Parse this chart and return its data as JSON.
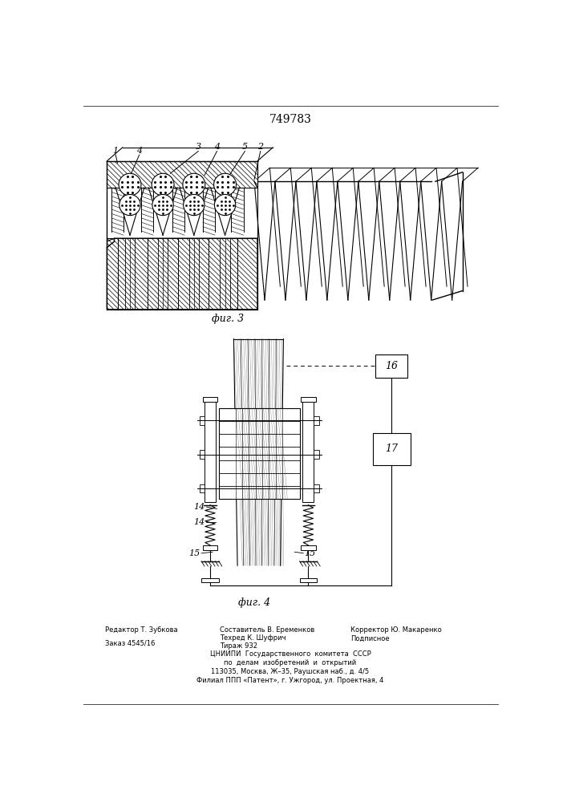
{
  "patent_number": "749783",
  "fig3_label": "фиг. 3",
  "fig4_label": "фиг. 4",
  "footer_left_line1": "Редактор Т. Зубкова",
  "footer_left_line2": "Заказ 4545/16",
  "footer_mid_line1": "Составитель В. Еременков",
  "footer_mid_line2": "Техред К. Шуфрич",
  "footer_mid_line3": "Тираж 932",
  "footer_right_line1": "Корректор Ю. Макаренко",
  "footer_right_line2": "Подписное",
  "footer_center1": "ЦНИИПИ  Государственного  комитета  СССР",
  "footer_center2": "по  делам  изобретений  и  открытий",
  "footer_center3": "113035, Москва, Ж–35, Раушская наб., д. 4/5",
  "footer_center4": "Филиал ППП «Патент», г. Ужгород, ул. Проектная, 4",
  "bg_color": "#ffffff",
  "line_color": "#000000"
}
